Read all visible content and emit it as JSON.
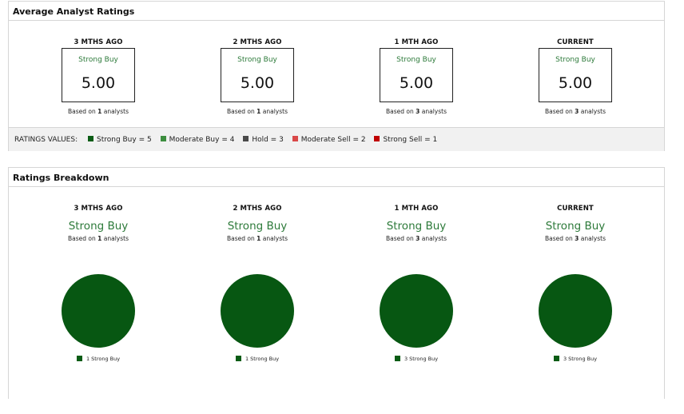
{
  "colors": {
    "strong_buy": "#0a5c15",
    "moderate_buy": "#3d8e3f",
    "hold": "#4a4a4a",
    "moderate_sell": "#d94848",
    "strong_sell": "#c00000",
    "pie_fill": "#075712"
  },
  "average_ratings": {
    "title": "Average Analyst Ratings",
    "columns": [
      {
        "period": "3 MTHS AGO",
        "rating": "Strong Buy",
        "score": "5.00",
        "based_prefix": "Based on",
        "count": "1",
        "based_suffix": "analysts"
      },
      {
        "period": "2 MTHS AGO",
        "rating": "Strong Buy",
        "score": "5.00",
        "based_prefix": "Based on",
        "count": "1",
        "based_suffix": "analysts"
      },
      {
        "period": "1 MTH AGO",
        "rating": "Strong Buy",
        "score": "5.00",
        "based_prefix": "Based on",
        "count": "3",
        "based_suffix": "analysts"
      },
      {
        "period": "CURRENT",
        "rating": "Strong Buy",
        "score": "5.00",
        "based_prefix": "Based on",
        "count": "3",
        "based_suffix": "analysts"
      }
    ],
    "legend": {
      "title": "RATINGS VALUES:",
      "items": [
        {
          "label": "Strong Buy = 5",
          "color": "#0a5c15"
        },
        {
          "label": "Moderate Buy = 4",
          "color": "#3d8e3f"
        },
        {
          "label": "Hold = 3",
          "color": "#4a4a4a"
        },
        {
          "label": "Moderate Sell = 2",
          "color": "#d94848"
        },
        {
          "label": "Strong Sell = 1",
          "color": "#c00000"
        }
      ]
    }
  },
  "ratings_breakdown": {
    "title": "Ratings Breakdown",
    "columns": [
      {
        "period": "3 MTHS AGO",
        "rating": "Strong Buy",
        "based_prefix": "Based on",
        "count": "1",
        "based_suffix": "analysts",
        "pie_legend": "1 Strong Buy",
        "strong_buy_share": 1.0
      },
      {
        "period": "2 MTHS AGO",
        "rating": "Strong Buy",
        "based_prefix": "Based on",
        "count": "1",
        "based_suffix": "analysts",
        "pie_legend": "1 Strong Buy",
        "strong_buy_share": 1.0
      },
      {
        "period": "1 MTH AGO",
        "rating": "Strong Buy",
        "based_prefix": "Based on",
        "count": "3",
        "based_suffix": "analysts",
        "pie_legend": "3 Strong Buy",
        "strong_buy_share": 1.0
      },
      {
        "period": "CURRENT",
        "rating": "Strong Buy",
        "based_prefix": "Based on",
        "count": "3",
        "based_suffix": "analysts",
        "pie_legend": "3 Strong Buy",
        "strong_buy_share": 1.0
      }
    ]
  }
}
